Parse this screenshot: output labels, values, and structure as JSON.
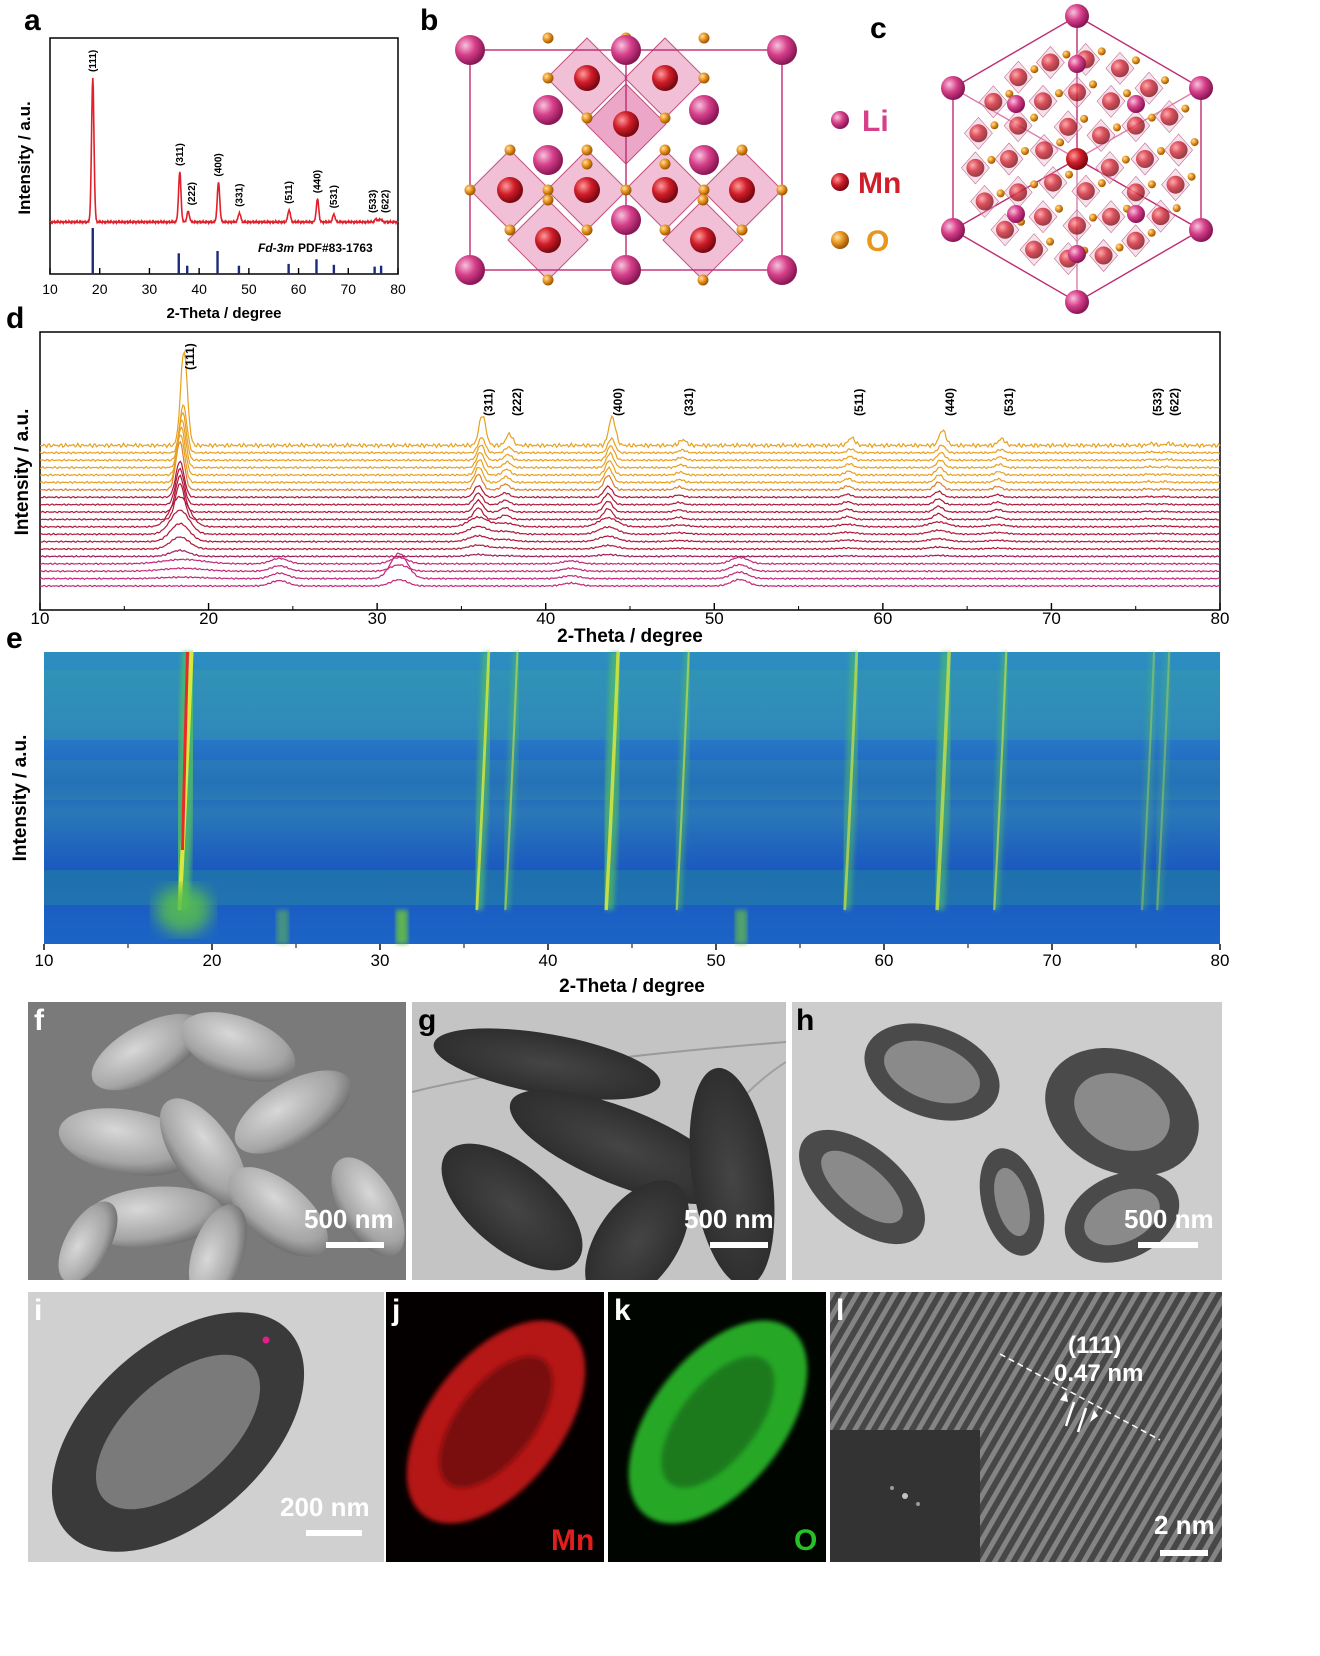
{
  "panel_labels": {
    "a": "a",
    "b": "b",
    "c": "c",
    "d": "d",
    "e": "e",
    "f": "f",
    "g": "g",
    "h": "h",
    "i": "i",
    "j": "j",
    "k": "k",
    "l": "l"
  },
  "colors": {
    "xrd_red": "#e0202a",
    "reference_blue": "#1c2a7a",
    "li": "#d6408a",
    "mn": "#d01e2a",
    "o": "#e8961e",
    "orange_trace": "#f0a020",
    "magenta_trace": "#c0287a",
    "heat_blue": "#2060c0"
  },
  "chart_data": [
    {
      "type": "line",
      "panel": "a",
      "xlabel": "2-Theta / degree",
      "ylabel": "Intensity / a.u.",
      "xlim": [
        10,
        80
      ],
      "xticks": [
        10,
        20,
        30,
        40,
        50,
        60,
        70,
        80
      ],
      "peaks": [
        {
          "hkl": "(111)",
          "x": 18.6,
          "height": 0.95
        },
        {
          "hkl": "(311)",
          "x": 36.1,
          "height": 0.33
        },
        {
          "hkl": "(222)",
          "x": 37.8,
          "height": 0.07
        },
        {
          "hkl": "(400)",
          "x": 43.9,
          "height": 0.26
        },
        {
          "hkl": "(331)",
          "x": 48.1,
          "height": 0.06
        },
        {
          "hkl": "(511)",
          "x": 58.1,
          "height": 0.08
        },
        {
          "hkl": "(440)",
          "x": 63.8,
          "height": 0.15
        },
        {
          "hkl": "(531)",
          "x": 67.1,
          "height": 0.05
        },
        {
          "hkl": "(533)",
          "x": 75.6,
          "height": 0.02
        },
        {
          "hkl": "(622)",
          "x": 76.5,
          "height": 0.02
        }
      ],
      "reference_label_italic": "Fd-3m",
      "reference_label": "PDF#83-1763",
      "reference_lines": [
        {
          "x": 18.6,
          "h": 1.0
        },
        {
          "x": 35.9,
          "h": 0.45
        },
        {
          "x": 37.6,
          "h": 0.18
        },
        {
          "x": 43.7,
          "h": 0.5
        },
        {
          "x": 48.0,
          "h": 0.18
        },
        {
          "x": 58.0,
          "h": 0.22
        },
        {
          "x": 63.6,
          "h": 0.32
        },
        {
          "x": 67.1,
          "h": 0.2
        },
        {
          "x": 75.3,
          "h": 0.16
        },
        {
          "x": 76.6,
          "h": 0.18
        }
      ]
    },
    {
      "type": "line",
      "panel": "d",
      "xlabel": "2-Theta / degree",
      "ylabel": "Intensity / a.u.",
      "xlim": [
        10,
        80
      ],
      "xticks": [
        10,
        20,
        30,
        40,
        50,
        60,
        70,
        80
      ],
      "peak_labels": [
        {
          "hkl": "(111)",
          "x": 18.3
        },
        {
          "hkl": "(311)",
          "x": 36.0
        },
        {
          "hkl": "(222)",
          "x": 37.7
        },
        {
          "hkl": "(400)",
          "x": 43.7
        },
        {
          "hkl": "(331)",
          "x": 47.9
        },
        {
          "hkl": "(511)",
          "x": 58.0
        },
        {
          "hkl": "(440)",
          "x": 63.4
        },
        {
          "hkl": "(531)",
          "x": 66.9
        },
        {
          "hkl": "(533)",
          "x": 75.7
        },
        {
          "hkl": "(622)",
          "x": 76.7
        }
      ]
    },
    {
      "type": "heatmap",
      "panel": "e",
      "xlabel": "2-Theta / degree",
      "ylabel": "Intensity / a.u.",
      "xlim": [
        10,
        80
      ],
      "xticks": [
        10,
        20,
        30,
        40,
        50,
        60,
        70,
        80
      ]
    }
  ],
  "legend_b": {
    "li": "Li",
    "mn": "Mn",
    "o": "O"
  },
  "scalebars": {
    "f": "500 nm",
    "g": "500 nm",
    "h": "500 nm",
    "i": "200 nm",
    "l": "2 nm"
  },
  "map_labels": {
    "j": "Mn",
    "k": "O"
  },
  "hrtem": {
    "plane": "(111)",
    "spacing": "0.47 nm"
  }
}
